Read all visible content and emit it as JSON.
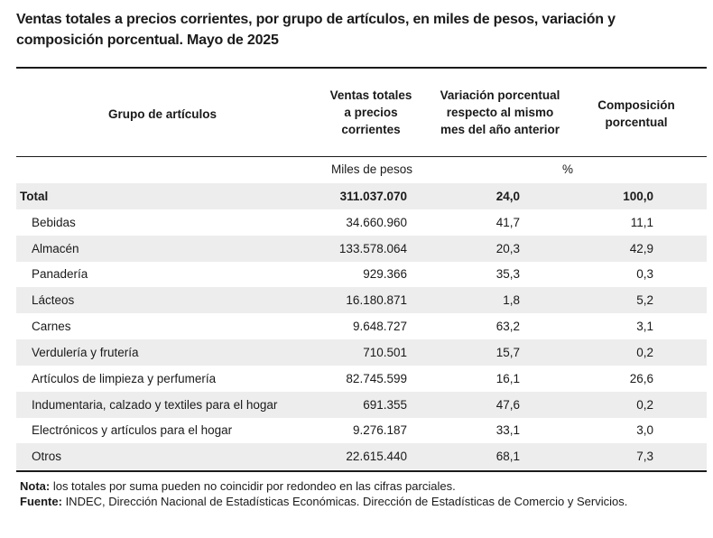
{
  "title": "Ventas totales a precios corrientes, por grupo de artículos, en miles de pesos, variación y composición porcentual. Mayo de 2025",
  "headers": {
    "grupo": "Grupo de artículos",
    "ventas": "Ventas totales a precios corrientes",
    "variacion": "Variación porcentual respecto al mismo mes del año anterior",
    "composicion": "Composición porcentual"
  },
  "units": {
    "ventas": "Miles de pesos",
    "pct": "%"
  },
  "total": {
    "label": "Total",
    "ventas": "311.037.070",
    "variacion": "24,0",
    "composicion": "100,0"
  },
  "rows": [
    {
      "label": "Bebidas",
      "ventas": "34.660.960",
      "variacion": "41,7",
      "composicion": "11,1"
    },
    {
      "label": "Almacén",
      "ventas": "133.578.064",
      "variacion": "20,3",
      "composicion": "42,9"
    },
    {
      "label": "Panadería",
      "ventas": "929.366",
      "variacion": "35,3",
      "composicion": "0,3"
    },
    {
      "label": "Lácteos",
      "ventas": "16.180.871",
      "variacion": "1,8",
      "composicion": "5,2"
    },
    {
      "label": "Carnes",
      "ventas": "9.648.727",
      "variacion": "63,2",
      "composicion": "3,1"
    },
    {
      "label": "Verdulería y frutería",
      "ventas": "710.501",
      "variacion": "15,7",
      "composicion": "0,2"
    },
    {
      "label": "Artículos de limpieza y perfumería",
      "ventas": "82.745.599",
      "variacion": "16,1",
      "composicion": "26,6"
    },
    {
      "label": "Indumentaria, calzado y textiles para el hogar",
      "ventas": "691.355",
      "variacion": "47,6",
      "composicion": "0,2"
    },
    {
      "label": "Electrónicos y artículos para el hogar",
      "ventas": "9.276.187",
      "variacion": "33,1",
      "composicion": "3,0"
    },
    {
      "label": "Otros",
      "ventas": "22.615.440",
      "variacion": "68,1",
      "composicion": "7,3"
    }
  ],
  "notes": {
    "nota_label": "Nota:",
    "nota_text": " los totales por suma pueden no coincidir por redondeo en las cifras parciales.",
    "fuente_label": "Fuente:",
    "fuente_text": " INDEC, Dirección Nacional de Estadísticas Económicas. Dirección de Estadísticas de Comercio y Servicios."
  }
}
